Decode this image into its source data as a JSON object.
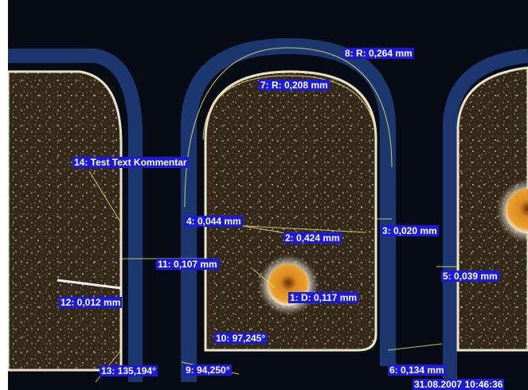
{
  "measurements": {
    "m1": "1: D: 0,117 mm",
    "m2": "2: 0,424 mm",
    "m3": "3: 0,020 mm",
    "m4": "4: 0,044 mm",
    "m5": "5: 0,039 mm",
    "m6": "6: 0,134 mm",
    "m7": "7: R: 0,208 mm",
    "m8": "8: R: 0,264 mm",
    "m9": "9: 94,250°",
    "m10": "10: 97,245°",
    "m11": "11: 0,107 mm",
    "m12": "12: 0,012 mm",
    "m13": "13: 135,194°",
    "m14": "14: Test Text Kommentar"
  },
  "timestamp": "31.08.2007 10:46:36",
  "colors": {
    "label_bg": "#1a1ad8",
    "label_text": "#ffffff",
    "annotation_line": "#e6e07a",
    "pad_surface": "#3a2e1c",
    "pad_edge": "#e8e2c8",
    "board_glow": "#2a4fa0",
    "via": "#d98a1c"
  }
}
